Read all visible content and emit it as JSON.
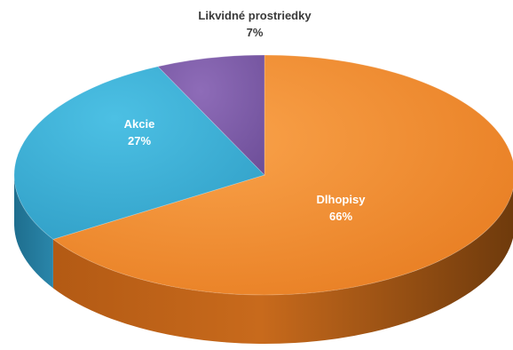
{
  "chart_data": {
    "type": "pie",
    "title": "",
    "style": "3d",
    "legend": "none",
    "slices": [
      {
        "label": "Dlhopisy",
        "value": 66,
        "value_label": "66%",
        "color": "#F28A2A",
        "label_color": "#ffffff"
      },
      {
        "label": "Akcie",
        "value": 27,
        "value_label": "27%",
        "color": "#3AAAD0",
        "label_color": "#ffffff"
      },
      {
        "label": "Likvidné prostriedky",
        "value": 7,
        "value_label": "7%",
        "color": "#7B5BA6",
        "label_color": "#3a3a3a"
      }
    ]
  }
}
